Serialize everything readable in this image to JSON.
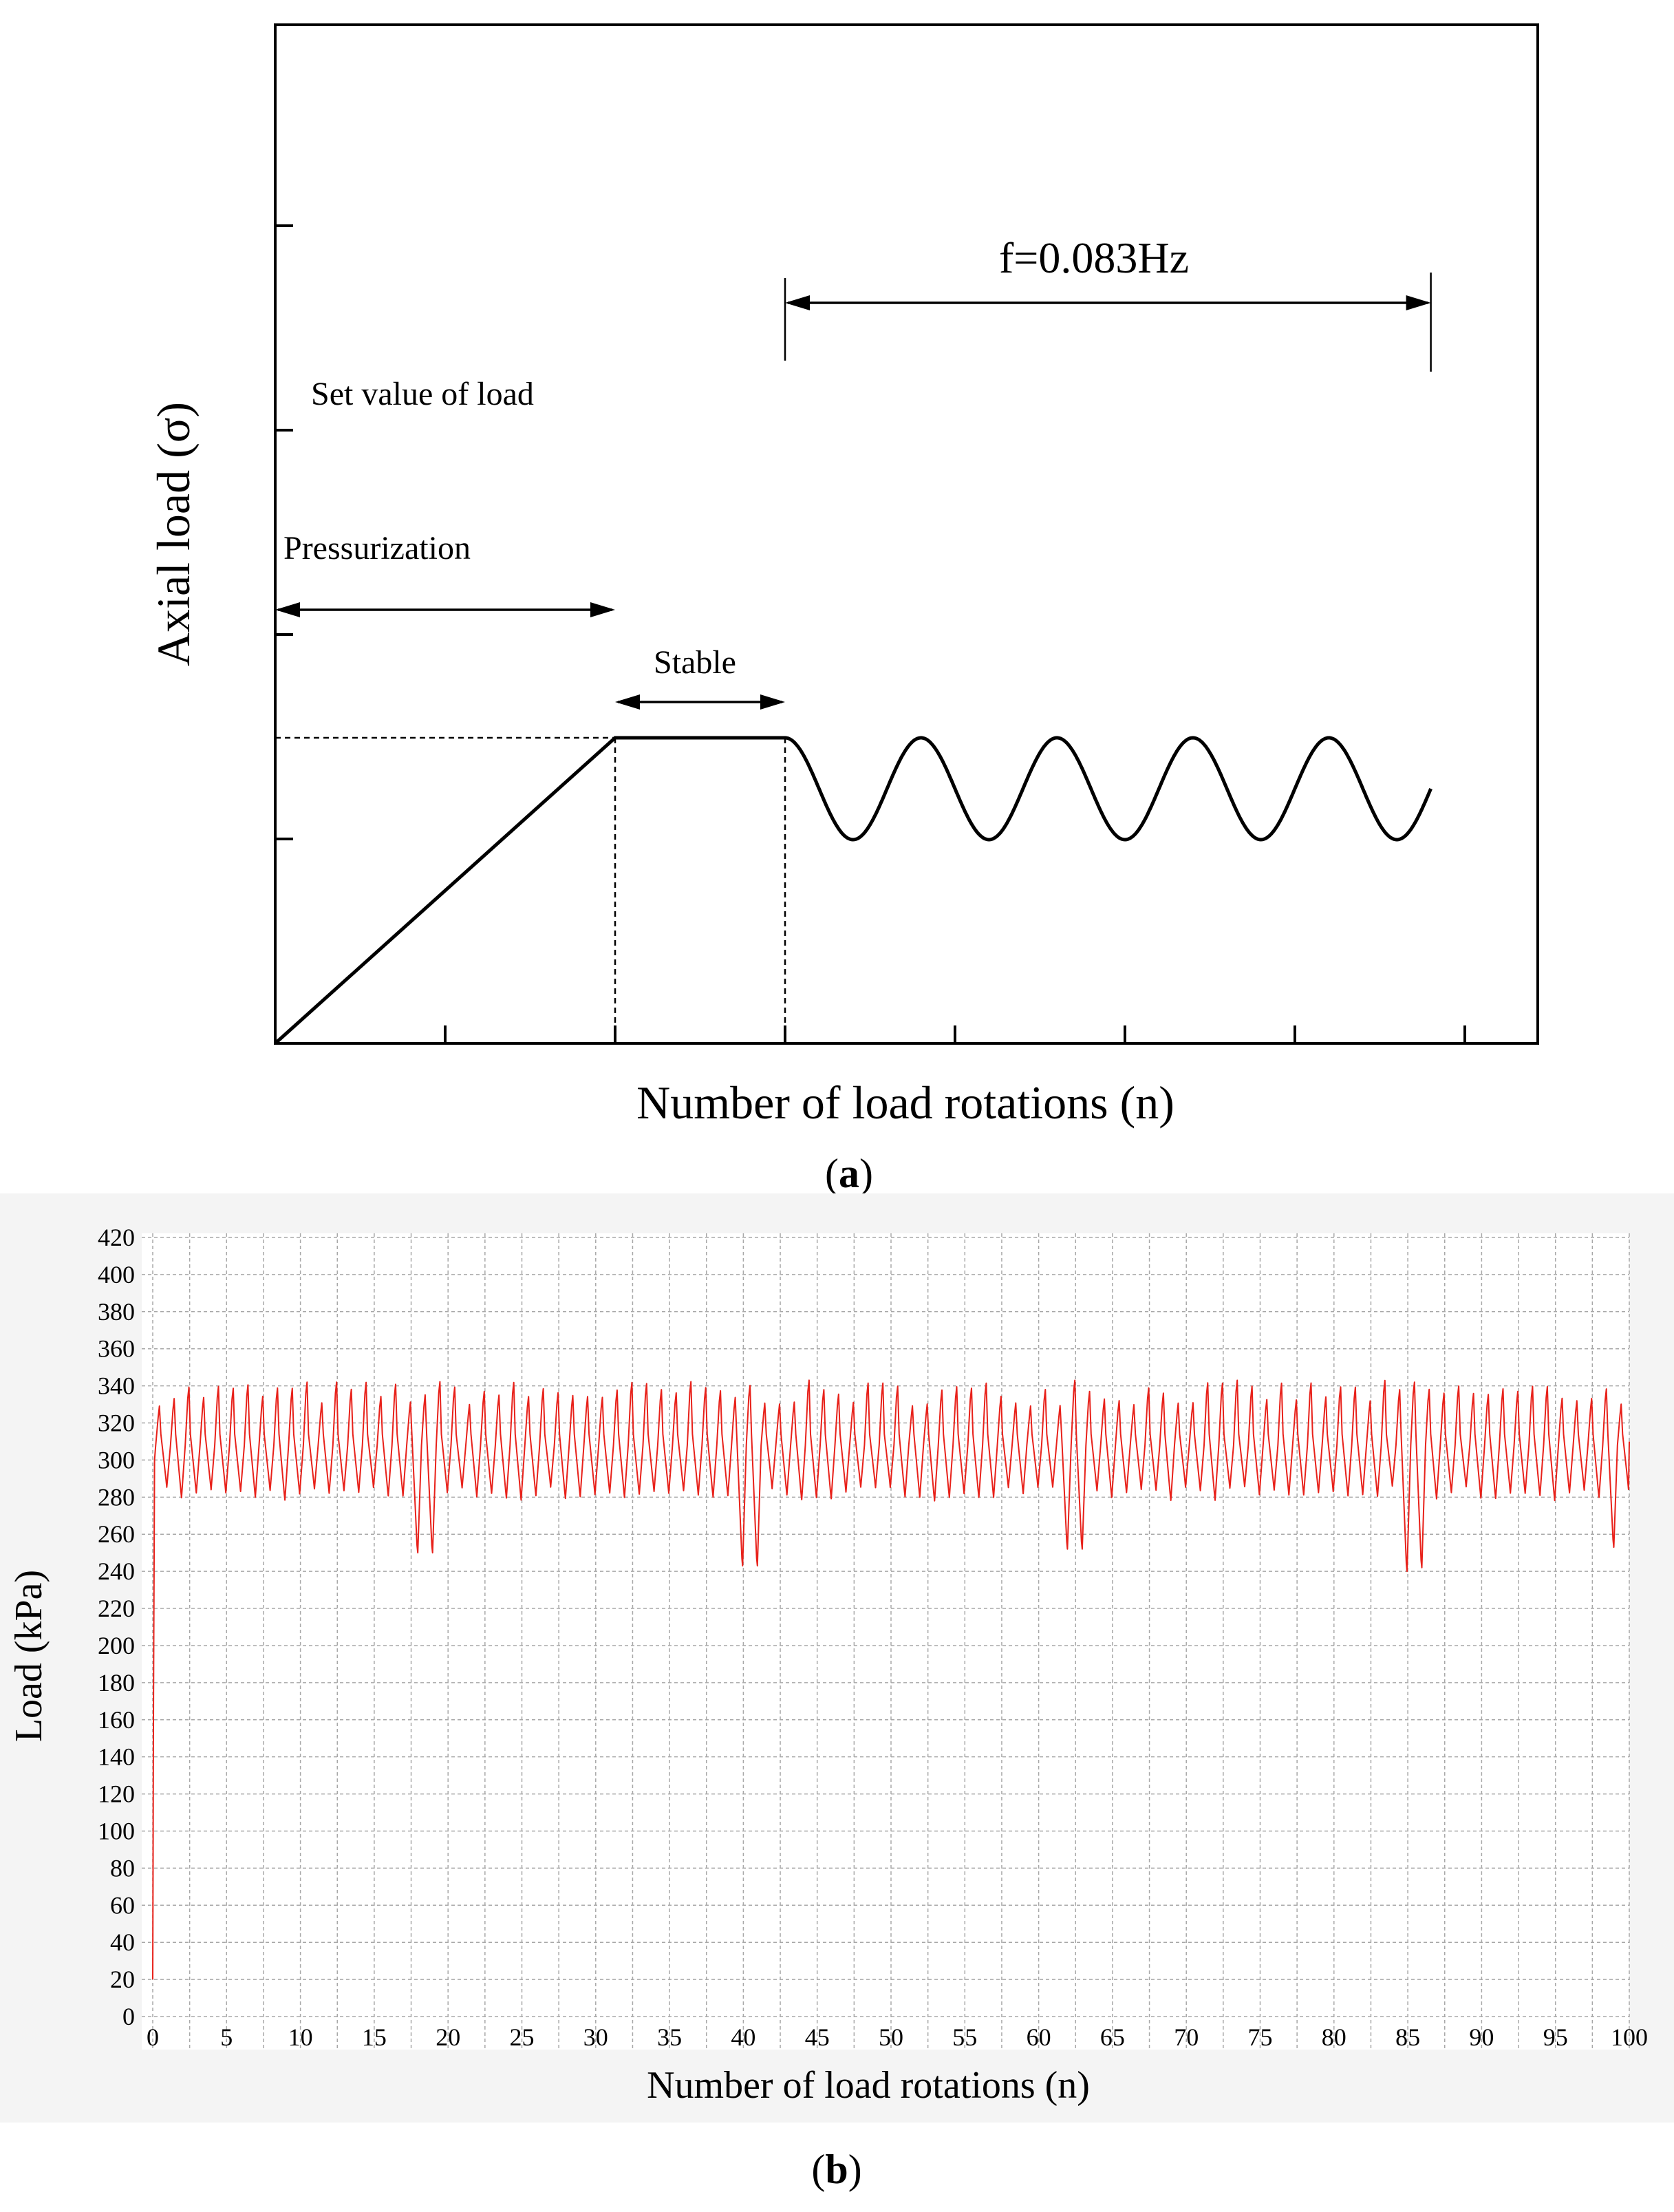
{
  "chart_data": [
    {
      "id": "a",
      "type": "line",
      "panel_label": "a",
      "xlabel": "Number of load rotations (n)",
      "ylabel": "Axial load (σ)",
      "annotations": {
        "set_value": "Set value of load",
        "pressurization": "Pressurization",
        "stable": "Stable",
        "frequency": "f=0.083Hz"
      },
      "x_ticks": 7,
      "y_ticks": 5,
      "series": [
        {
          "segments": [
            {
              "kind": "ramp",
              "x": [
                0,
                2
              ],
              "y": [
                0,
                3
              ]
            },
            {
              "kind": "plateau",
              "x": [
                2,
                3
              ],
              "y": [
                3,
                3
              ]
            },
            {
              "kind": "sine",
              "x": [
                3,
                6.8
              ],
              "center": 2.5,
              "amplitude": 0.5,
              "cycles": 4.75,
              "peak_first_at": 3.18
            }
          ]
        }
      ],
      "color": "#000000"
    },
    {
      "id": "b",
      "type": "line",
      "panel_label": "b",
      "xlabel": "Number of load rotations (n)",
      "ylabel": "Load (kPa)",
      "xlim": [
        0,
        100
      ],
      "ylim": [
        0,
        420
      ],
      "x_ticks": [
        0,
        5,
        10,
        15,
        20,
        25,
        30,
        35,
        40,
        45,
        50,
        55,
        60,
        65,
        70,
        75,
        80,
        85,
        90,
        95,
        100
      ],
      "y_ticks": [
        0,
        20,
        40,
        60,
        80,
        100,
        120,
        140,
        160,
        180,
        200,
        220,
        240,
        260,
        280,
        300,
        320,
        340,
        360,
        380,
        400,
        420
      ],
      "grid": true,
      "color": "#e8211a",
      "signal": {
        "start_value": 20,
        "cycles_per_rotation": 1,
        "mean": 308,
        "trough": 282,
        "peak": 334,
        "peak_max": 347,
        "trough_min": 240,
        "dips": [
          {
            "x": 18.2,
            "value": 250
          },
          {
            "x": 40.3,
            "value": 243
          },
          {
            "x": 40.9,
            "value": 244
          },
          {
            "x": 62.3,
            "value": 252
          },
          {
            "x": 85.2,
            "value": 240
          },
          {
            "x": 85.7,
            "value": 242
          },
          {
            "x": 99.0,
            "value": 253
          }
        ],
        "spikes": [
          {
            "x": 6.8,
            "value": 340
          },
          {
            "x": 15.0,
            "value": 342
          },
          {
            "x": 27.8,
            "value": 342
          },
          {
            "x": 40.1,
            "value": 347
          },
          {
            "x": 41.0,
            "value": 343
          },
          {
            "x": 62.5,
            "value": 343
          },
          {
            "x": 79.0,
            "value": 340
          }
        ]
      }
    }
  ]
}
